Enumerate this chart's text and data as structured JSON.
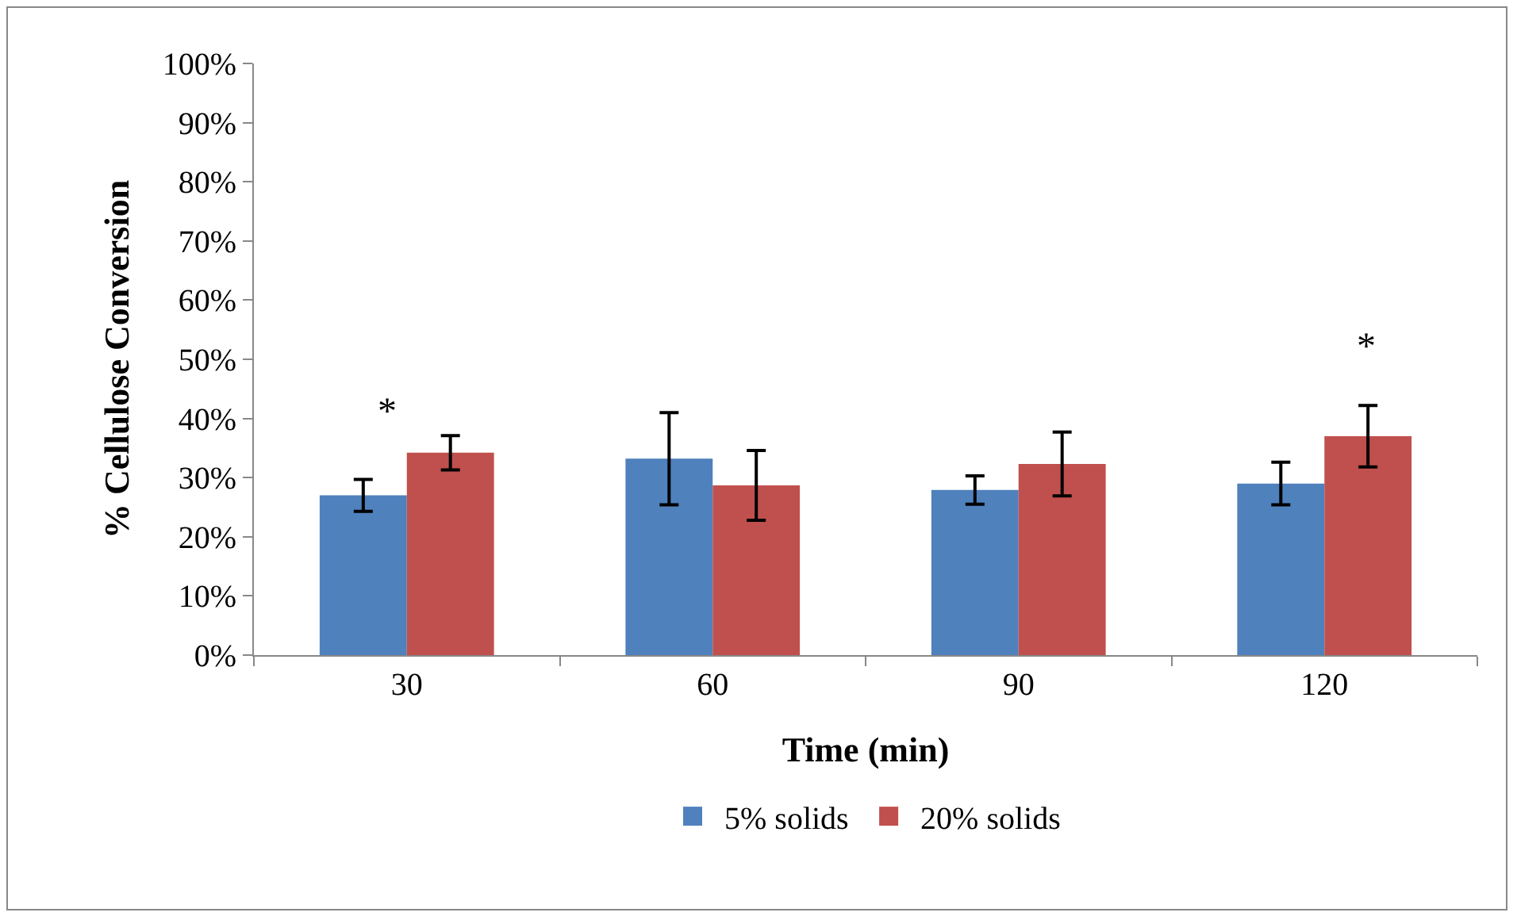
{
  "chart_data": {
    "type": "bar",
    "xlabel": "Time (min)",
    "ylabel": "% Cellulose Conversion",
    "categories": [
      "30",
      "60",
      "90",
      "120"
    ],
    "series": [
      {
        "name": "5% solids",
        "color": "#4f81bd",
        "values": [
          27,
          33.2,
          27.9,
          29.0
        ],
        "errors": [
          2.7,
          7.8,
          2.4,
          3.6
        ]
      },
      {
        "name": "20% solids",
        "color": "#c0504d",
        "values": [
          34.2,
          28.7,
          32.3,
          37.0
        ],
        "errors": [
          2.9,
          5.9,
          5.4,
          5.2
        ]
      }
    ],
    "ylim": [
      0,
      100
    ],
    "yticks": [
      {
        "value": 0,
        "label": "0%"
      },
      {
        "value": 10,
        "label": "10%"
      },
      {
        "value": 20,
        "label": "20%"
      },
      {
        "value": 30,
        "label": "30%"
      },
      {
        "value": 40,
        "label": "40%"
      },
      {
        "value": 50,
        "label": "50%"
      },
      {
        "value": 60,
        "label": "60%"
      },
      {
        "value": 70,
        "label": "70%"
      },
      {
        "value": 80,
        "label": "80%"
      },
      {
        "value": 90,
        "label": "90%"
      },
      {
        "value": 100,
        "label": "100%"
      }
    ],
    "annotations": [
      "*",
      "*"
    ],
    "grid": false,
    "legend": "bottom"
  }
}
